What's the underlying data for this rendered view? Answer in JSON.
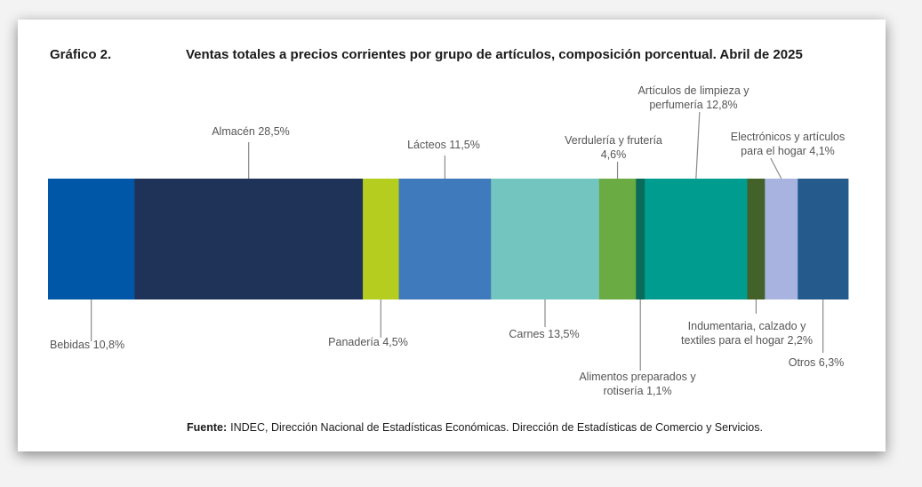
{
  "header": {
    "label": "Gráfico 2.",
    "title": "Ventas totales a precios corrientes por grupo de artículos, composición porcentual. Abril de 2025"
  },
  "chart_data": {
    "type": "bar",
    "orientation": "horizontal-stacked-100",
    "title": "Ventas totales a precios corrientes por grupo de artículos, composición porcentual. Abril de 2025",
    "unit": "%",
    "segments": [
      {
        "name": "Bebidas",
        "value": 10.8,
        "color": "#0057a8",
        "label_lines": [
          "Bebidas 10,8%"
        ],
        "side": "below"
      },
      {
        "name": "Almacén",
        "value": 28.5,
        "color": "#1f3358",
        "label_lines": [
          "Almacén 28,5%"
        ],
        "side": "above"
      },
      {
        "name": "Panadería",
        "value": 4.5,
        "color": "#b4cd1e",
        "label_lines": [
          "Panadería 4,5%"
        ],
        "side": "below"
      },
      {
        "name": "Lácteos",
        "value": 11.5,
        "color": "#3f7abc",
        "label_lines": [
          "Lácteos 11,5%"
        ],
        "side": "above"
      },
      {
        "name": "Carnes",
        "value": 13.5,
        "color": "#72c6bf",
        "label_lines": [
          "Carnes 13,5%"
        ],
        "side": "below"
      },
      {
        "name": "Verdulería y frutería",
        "value": 4.6,
        "color": "#6aab44",
        "label_lines": [
          "Verdulería y frutería",
          "4,6%"
        ],
        "side": "above"
      },
      {
        "name": "Alimentos preparados y rotisería",
        "value": 1.1,
        "color": "#0b6b5b",
        "label_lines": [
          "Alimentos preparados y",
          "rotisería 1,1%"
        ],
        "side": "below"
      },
      {
        "name": "Artículos de limpieza y perfumería",
        "value": 12.8,
        "color": "#009c8f",
        "label_lines": [
          "Artículos de limpieza y",
          "perfumería 12,8%"
        ],
        "side": "above"
      },
      {
        "name": "Indumentaria, calzado y textiles para el hogar",
        "value": 2.2,
        "color": "#43622a",
        "label_lines": [
          "Indumentaria, calzado y",
          "textiles para el hogar 2,2%"
        ],
        "side": "below"
      },
      {
        "name": "Electrónicos y artículos para el hogar",
        "value": 4.1,
        "color": "#a8b4df",
        "label_lines": [
          "Electrónicos y artículos",
          "para el hogar 4,1%"
        ],
        "side": "above"
      },
      {
        "name": "Otros",
        "value": 6.3,
        "color": "#245b8c",
        "label_lines": [
          "Otros 6,3%"
        ],
        "side": "below"
      }
    ]
  },
  "footer": {
    "source_label": "Fuente:",
    "source_text": "INDEC, Dirección Nacional de Estadísticas Económicas. Dirección de Estadísticas de Comercio y Servicios."
  }
}
